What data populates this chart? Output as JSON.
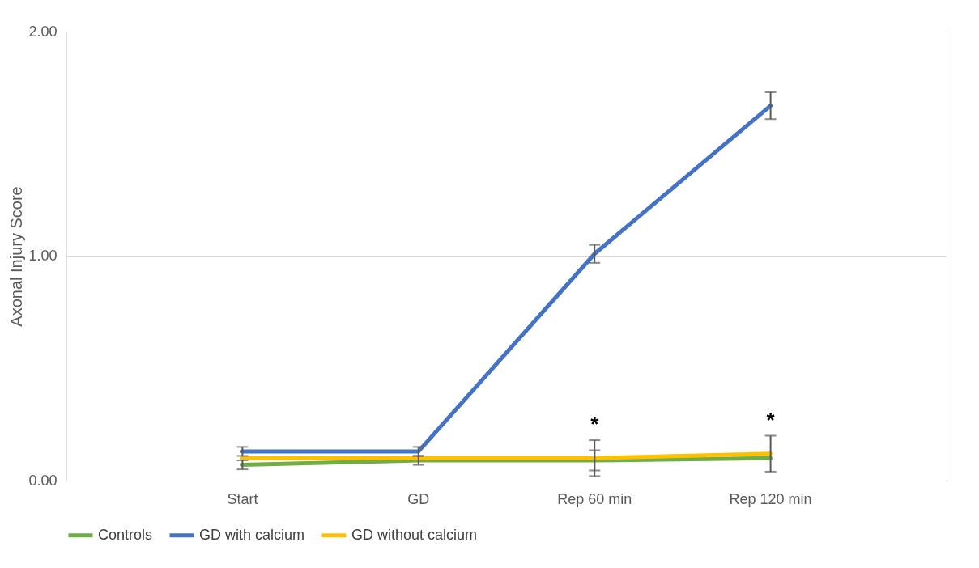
{
  "chart_data": {
    "type": "line",
    "ylabel": "Axonal Injury Score",
    "categories": [
      "Start",
      "GD",
      "Rep 60 min",
      "Rep 120 min"
    ],
    "series": [
      {
        "name": "Controls",
        "color": "#70ad47",
        "values": [
          0.07,
          0.09,
          0.09,
          0.1
        ],
        "errors": [
          0.02,
          0.02,
          0.045,
          null
        ]
      },
      {
        "name": "GD with calcium",
        "color": "#4472c4",
        "values": [
          0.13,
          0.13,
          1.01,
          1.67
        ],
        "errors": [
          0.02,
          0.02,
          0.04,
          0.06
        ]
      },
      {
        "name": "GD without calcium",
        "color": "#ffc000",
        "values": [
          0.1,
          0.1,
          0.1,
          0.12
        ],
        "errors": [
          null,
          null,
          0.08,
          0.08
        ]
      }
    ],
    "annotations": [
      "*",
      "*"
    ],
    "ylim": [
      0,
      2
    ],
    "yticks": [
      {
        "value": 0,
        "label": "0.00"
      },
      {
        "value": 1,
        "label": "1.00"
      },
      {
        "value": 2,
        "label": "2.00"
      }
    ],
    "grid": "y",
    "legend": "bottom",
    "marker": "none",
    "line_style": "solid"
  }
}
